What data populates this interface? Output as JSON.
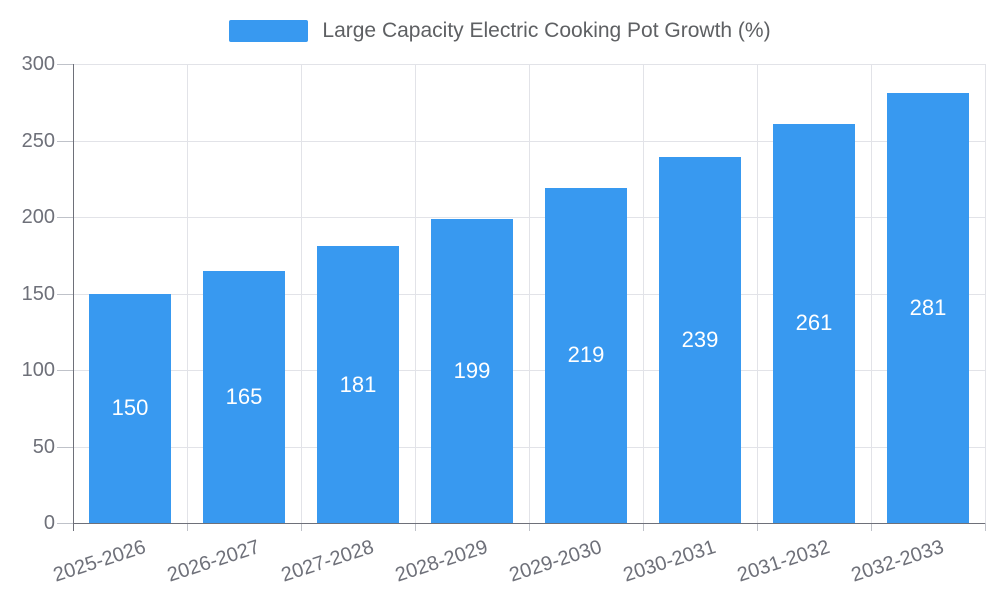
{
  "legend": {
    "label": "Large Capacity Electric Cooking Pot Growth (%)"
  },
  "chart_data": {
    "type": "bar",
    "title": "Large Capacity Electric Cooking Pot Growth (%)",
    "categories": [
      "2025-2026",
      "2026-2027",
      "2027-2028",
      "2028-2029",
      "2029-2030",
      "2030-2031",
      "2031-2032",
      "2032-2033"
    ],
    "values": [
      150,
      165,
      181,
      199,
      219,
      239,
      261,
      281
    ],
    "xlabel": "",
    "ylabel": "",
    "ylim": [
      0,
      300
    ],
    "yticks": [
      0,
      50,
      100,
      150,
      200,
      250,
      300
    ],
    "grid": true,
    "legend_position": "top",
    "colors": {
      "bar": "#3899f0",
      "bar_label": "#ffffff",
      "grid": "#e2e3e8",
      "axis": "#6e7079",
      "tick": "#bfc2c9",
      "axis_text": "#6e7079",
      "legend_text": "#5e6063",
      "background": "#ffffff"
    }
  }
}
